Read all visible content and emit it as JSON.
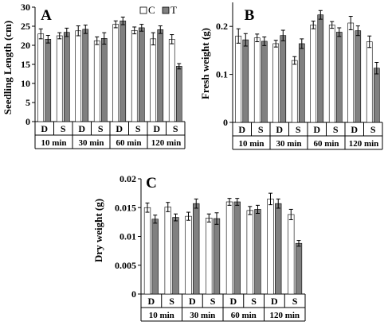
{
  "colors": {
    "C": "#ffffff",
    "T": "#808080",
    "stroke": "#000000"
  },
  "chart_data": [
    {
      "type": "bar",
      "panel": "A",
      "ylabel": "Seedling Length (cm)",
      "ylim": [
        0,
        30
      ],
      "yticks": [
        "0",
        "5",
        "10",
        "15",
        "20",
        "25",
        "30"
      ],
      "ytick_values": [
        0,
        5,
        10,
        15,
        20,
        25,
        30
      ],
      "legend": [
        "C",
        "T"
      ],
      "legend_position": "top-right",
      "categories": [
        "D",
        "S",
        "D",
        "S",
        "D",
        "S",
        "D",
        "S"
      ],
      "groups": [
        "10 min",
        "30 min",
        "60 min",
        "120 min"
      ],
      "series": [
        {
          "name": "C",
          "values": [
            23.0,
            22.5,
            23.8,
            21.2,
            25.5,
            23.9,
            21.7,
            21.6
          ],
          "errors": [
            1.3,
            0.8,
            1.3,
            1.0,
            0.9,
            0.9,
            1.6,
            1.2
          ]
        },
        {
          "name": "T",
          "values": [
            21.6,
            23.4,
            24.2,
            21.8,
            26.4,
            24.6,
            24.1,
            14.5
          ],
          "errors": [
            1.0,
            1.1,
            1.1,
            1.5,
            1.0,
            0.9,
            1.0,
            0.7
          ]
        }
      ]
    },
    {
      "type": "bar",
      "panel": "B",
      "ylabel": "Fresh weight (g)",
      "ylim": [
        0,
        0.25
      ],
      "yticks": [
        "0",
        "0.1",
        "0.2"
      ],
      "ytick_values": [
        0,
        0.1,
        0.2
      ],
      "legend": [],
      "categories": [
        "D",
        "S",
        "D",
        "S",
        "D",
        "S",
        "D",
        "S"
      ],
      "groups": [
        "10 min",
        "30 min",
        "60 min",
        "120 min"
      ],
      "series": [
        {
          "name": "C",
          "values": [
            0.18,
            0.176,
            0.164,
            0.129,
            0.203,
            0.203,
            0.207,
            0.168
          ],
          "errors": [
            0.015,
            0.008,
            0.007,
            0.008,
            0.008,
            0.007,
            0.014,
            0.012
          ]
        },
        {
          "name": "T",
          "values": [
            0.172,
            0.169,
            0.181,
            0.164,
            0.224,
            0.188,
            0.191,
            0.113
          ],
          "errors": [
            0.013,
            0.009,
            0.011,
            0.01,
            0.009,
            0.009,
            0.01,
            0.012
          ]
        }
      ]
    },
    {
      "type": "bar",
      "panel": "C",
      "ylabel": "Dry weight (g)",
      "ylim": [
        0,
        0.02
      ],
      "yticks": [
        "0",
        "0.005",
        "0.01",
        "0.015",
        "0.02"
      ],
      "ytick_values": [
        0,
        0.005,
        0.01,
        0.015,
        0.02
      ],
      "legend": [],
      "categories": [
        "D",
        "S",
        "D",
        "S",
        "D",
        "S",
        "D",
        "S"
      ],
      "groups": [
        "10 min",
        "30 min",
        "60 min",
        "120 min"
      ],
      "series": [
        {
          "name": "C",
          "values": [
            0.015,
            0.0151,
            0.0135,
            0.0132,
            0.016,
            0.0145,
            0.0165,
            0.0138
          ],
          "errors": [
            0.0008,
            0.0008,
            0.0007,
            0.0007,
            0.0006,
            0.0007,
            0.001,
            0.0009
          ]
        },
        {
          "name": "T",
          "values": [
            0.013,
            0.0133,
            0.0157,
            0.0131,
            0.016,
            0.0147,
            0.0157,
            0.0088
          ],
          "errors": [
            0.0007,
            0.0006,
            0.0008,
            0.001,
            0.0006,
            0.0007,
            0.0008,
            0.0005
          ]
        }
      ]
    }
  ]
}
